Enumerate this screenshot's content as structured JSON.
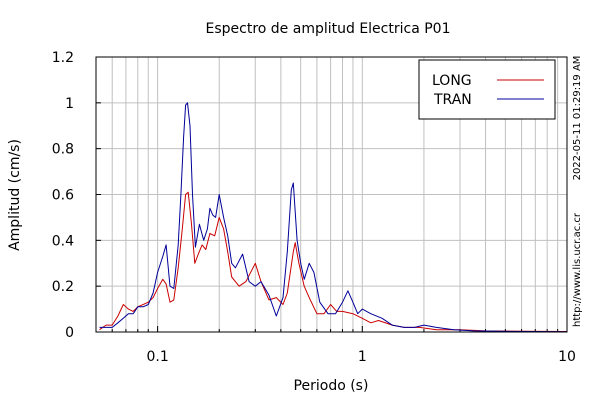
{
  "chart_data": {
    "type": "line",
    "title": "Espectro de amplitud Electrica P01",
    "xlabel": "Periodo (s)",
    "ylabel": "Amplitud (cm/s)",
    "x_scale": "log",
    "xlim": [
      0.05,
      10
    ],
    "ylim": [
      0,
      1.2
    ],
    "x_ticks": [
      {
        "value": 0.1,
        "label": "0.1"
      },
      {
        "value": 1,
        "label": "1"
      },
      {
        "value": 10,
        "label": "10"
      }
    ],
    "y_ticks": [
      {
        "value": 0,
        "label": "0"
      },
      {
        "value": 0.2,
        "label": "0.2"
      },
      {
        "value": 0.4,
        "label": "0.4"
      },
      {
        "value": 0.6,
        "label": "0.6"
      },
      {
        "value": 0.8,
        "label": "0.8"
      },
      {
        "value": 1,
        "label": "1"
      },
      {
        "value": 1.2,
        "label": "1.2"
      }
    ],
    "grid": true,
    "legend": "top-right",
    "series": [
      {
        "name": "LONG",
        "color": "#cc0000",
        "points": [
          [
            0.052,
            0.01
          ],
          [
            0.056,
            0.03
          ],
          [
            0.06,
            0.03
          ],
          [
            0.064,
            0.07
          ],
          [
            0.068,
            0.12
          ],
          [
            0.072,
            0.1
          ],
          [
            0.076,
            0.09
          ],
          [
            0.08,
            0.11
          ],
          [
            0.085,
            0.12
          ],
          [
            0.09,
            0.13
          ],
          [
            0.095,
            0.15
          ],
          [
            0.1,
            0.19
          ],
          [
            0.106,
            0.23
          ],
          [
            0.11,
            0.21
          ],
          [
            0.115,
            0.13
          ],
          [
            0.12,
            0.14
          ],
          [
            0.126,
            0.28
          ],
          [
            0.132,
            0.45
          ],
          [
            0.137,
            0.6
          ],
          [
            0.141,
            0.61
          ],
          [
            0.146,
            0.48
          ],
          [
            0.152,
            0.3
          ],
          [
            0.158,
            0.34
          ],
          [
            0.165,
            0.38
          ],
          [
            0.172,
            0.36
          ],
          [
            0.18,
            0.43
          ],
          [
            0.19,
            0.42
          ],
          [
            0.2,
            0.5
          ],
          [
            0.21,
            0.45
          ],
          [
            0.22,
            0.35
          ],
          [
            0.23,
            0.24
          ],
          [
            0.25,
            0.2
          ],
          [
            0.27,
            0.22
          ],
          [
            0.3,
            0.3
          ],
          [
            0.32,
            0.22
          ],
          [
            0.35,
            0.14
          ],
          [
            0.38,
            0.15
          ],
          [
            0.41,
            0.12
          ],
          [
            0.43,
            0.17
          ],
          [
            0.46,
            0.35
          ],
          [
            0.47,
            0.39
          ],
          [
            0.49,
            0.3
          ],
          [
            0.52,
            0.2
          ],
          [
            0.55,
            0.15
          ],
          [
            0.6,
            0.08
          ],
          [
            0.65,
            0.08
          ],
          [
            0.7,
            0.12
          ],
          [
            0.75,
            0.09
          ],
          [
            0.8,
            0.09
          ],
          [
            0.9,
            0.08
          ],
          [
            1.0,
            0.06
          ],
          [
            1.1,
            0.04
          ],
          [
            1.2,
            0.05
          ],
          [
            1.4,
            0.03
          ],
          [
            1.6,
            0.02
          ],
          [
            1.9,
            0.02
          ],
          [
            2.3,
            0.01
          ],
          [
            3.0,
            0.01
          ],
          [
            4.0,
            0.005
          ],
          [
            6.0,
            0.003
          ],
          [
            10.0,
            0.002
          ]
        ]
      },
      {
        "name": "TRAN",
        "color": "#000099",
        "points": [
          [
            0.052,
            0.02
          ],
          [
            0.056,
            0.02
          ],
          [
            0.06,
            0.02
          ],
          [
            0.064,
            0.04
          ],
          [
            0.068,
            0.06
          ],
          [
            0.072,
            0.08
          ],
          [
            0.076,
            0.08
          ],
          [
            0.08,
            0.11
          ],
          [
            0.085,
            0.11
          ],
          [
            0.09,
            0.12
          ],
          [
            0.095,
            0.17
          ],
          [
            0.1,
            0.26
          ],
          [
            0.106,
            0.33
          ],
          [
            0.11,
            0.38
          ],
          [
            0.115,
            0.2
          ],
          [
            0.12,
            0.19
          ],
          [
            0.126,
            0.38
          ],
          [
            0.13,
            0.6
          ],
          [
            0.134,
            0.85
          ],
          [
            0.137,
            0.99
          ],
          [
            0.14,
            1.0
          ],
          [
            0.144,
            0.9
          ],
          [
            0.148,
            0.6
          ],
          [
            0.153,
            0.37
          ],
          [
            0.16,
            0.47
          ],
          [
            0.168,
            0.4
          ],
          [
            0.175,
            0.45
          ],
          [
            0.18,
            0.54
          ],
          [
            0.186,
            0.51
          ],
          [
            0.192,
            0.5
          ],
          [
            0.2,
            0.6
          ],
          [
            0.21,
            0.5
          ],
          [
            0.22,
            0.42
          ],
          [
            0.23,
            0.3
          ],
          [
            0.24,
            0.28
          ],
          [
            0.26,
            0.34
          ],
          [
            0.28,
            0.22
          ],
          [
            0.3,
            0.2
          ],
          [
            0.32,
            0.22
          ],
          [
            0.35,
            0.16
          ],
          [
            0.38,
            0.07
          ],
          [
            0.41,
            0.15
          ],
          [
            0.43,
            0.35
          ],
          [
            0.45,
            0.62
          ],
          [
            0.46,
            0.65
          ],
          [
            0.48,
            0.4
          ],
          [
            0.5,
            0.3
          ],
          [
            0.52,
            0.23
          ],
          [
            0.55,
            0.3
          ],
          [
            0.58,
            0.26
          ],
          [
            0.62,
            0.13
          ],
          [
            0.68,
            0.08
          ],
          [
            0.74,
            0.08
          ],
          [
            0.8,
            0.13
          ],
          [
            0.85,
            0.18
          ],
          [
            0.9,
            0.13
          ],
          [
            0.95,
            0.08
          ],
          [
            1.0,
            0.1
          ],
          [
            1.1,
            0.08
          ],
          [
            1.25,
            0.06
          ],
          [
            1.4,
            0.03
          ],
          [
            1.6,
            0.02
          ],
          [
            1.8,
            0.02
          ],
          [
            2.0,
            0.03
          ],
          [
            2.3,
            0.02
          ],
          [
            2.8,
            0.01
          ],
          [
            3.5,
            0.005
          ],
          [
            5.0,
            0.003
          ],
          [
            7.0,
            0.002
          ],
          [
            10.0,
            0.001
          ]
        ]
      }
    ]
  },
  "side_text": {
    "timestamp": "2022-05-11 01:29:19 AM",
    "website": "http://www.lis.ucr.ac.cr"
  }
}
